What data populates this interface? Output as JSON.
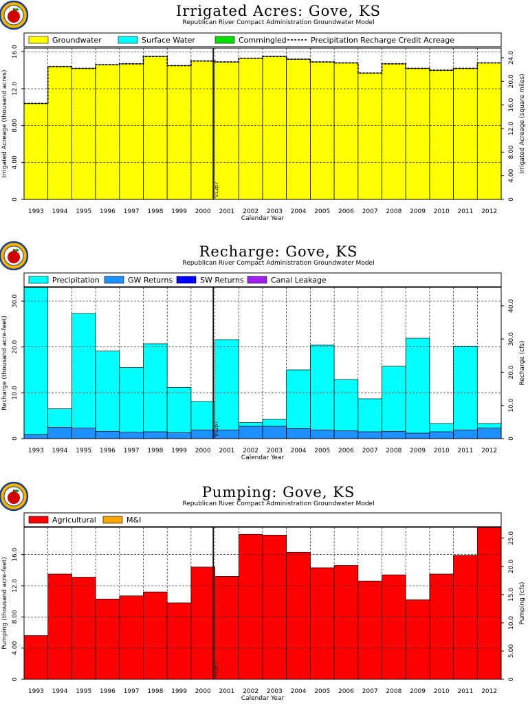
{
  "years": [
    "1993",
    "1994",
    "1995",
    "1996",
    "1997",
    "1998",
    "1999",
    "2000",
    "2001",
    "2002",
    "2003",
    "2004",
    "2005",
    "2006",
    "2007",
    "2008",
    "2009",
    "2010",
    "2011",
    "2012"
  ],
  "colors": {
    "groundwater": "#ffff00",
    "surface_water": "#00ffff",
    "commingled": "#00e000",
    "precipitation": "#00ffff",
    "gw_returns": "#1e90ff",
    "sw_returns": "#0000ff",
    "canal_leakage": "#a020f0",
    "agricultural": "#ff0000",
    "mi": "#ffa500"
  },
  "logo_icon": "apple-logo-icon",
  "chart_data": [
    {
      "type": "bar",
      "title": "Irrigated Acres: Gove, KS",
      "subtitle": "Republican River Compact Administration Groundwater Model",
      "xlabel": "Calendar Year",
      "ylabel": "Irrigated Acreage (thousand acres)",
      "y2label": "Irrigated Acreage (square miles)",
      "ylim": [
        0,
        16.4
      ],
      "yticks": [
        "0",
        "4.00",
        "8.00",
        "12.0",
        "16.0"
      ],
      "y2ticks": [
        "0",
        "4.00",
        "8.00",
        "12.0",
        "16.0",
        "20.0",
        "24.0"
      ],
      "marker_label": "V12p7",
      "legend": [
        "Groundwater",
        "Surface Water",
        "Commingled",
        "Precipitation  Recharge  Credit  Acreage"
      ],
      "series": [
        {
          "name": "Groundwater",
          "values": [
            10.4,
            14.4,
            14.2,
            14.6,
            14.7,
            15.5,
            14.5,
            15.0,
            14.9,
            15.3,
            15.5,
            15.2,
            14.9,
            14.8,
            13.7,
            14.7,
            14.2,
            14.0,
            14.2,
            14.8
          ]
        },
        {
          "name": "Surface Water",
          "values": [
            0,
            0,
            0,
            0,
            0,
            0,
            0,
            0,
            0,
            0,
            0,
            0,
            0,
            0,
            0,
            0,
            0,
            0,
            0,
            0
          ]
        },
        {
          "name": "Commingled",
          "values": [
            0,
            0,
            0,
            0,
            0,
            0,
            0,
            0,
            0,
            0,
            0,
            0,
            0,
            0,
            0,
            0,
            0,
            0,
            0,
            0
          ]
        }
      ],
      "line": {
        "name": "Precipitation  Recharge  Credit  Acreage",
        "values": [
          10.4,
          14.4,
          14.2,
          14.6,
          14.7,
          15.5,
          14.5,
          15.0,
          14.9,
          15.3,
          15.5,
          15.2,
          14.9,
          14.8,
          13.7,
          14.7,
          14.2,
          14.0,
          14.2,
          14.8
        ]
      }
    },
    {
      "type": "bar",
      "title": "Recharge: Gove, KS",
      "subtitle": "Republican River Compact Administration Groundwater Model",
      "xlabel": "Calendar Year",
      "ylabel": "Recharge (thousand acre-feet)",
      "y2label": "Recharge (cfs)",
      "ylim": [
        0,
        33
      ],
      "yticks": [
        "0",
        "10.0",
        "20.0",
        "30.0"
      ],
      "y2ticks": [
        "0",
        "10.0",
        "20.0",
        "30.0",
        "40.0"
      ],
      "marker_label": "V12p7",
      "legend": [
        "Precipitation",
        "GW Returns",
        "SW Returns",
        "Canal Leakage"
      ],
      "series": [
        {
          "name": "GW Returns",
          "values": [
            0.9,
            2.5,
            2.3,
            1.6,
            1.4,
            1.5,
            1.3,
            1.9,
            1.9,
            2.7,
            2.7,
            2.2,
            1.9,
            1.7,
            1.5,
            1.6,
            1.2,
            1.5,
            1.9,
            2.3
          ]
        },
        {
          "name": "Precipitation",
          "values": [
            32.2,
            4.0,
            25.0,
            17.5,
            14.1,
            19.2,
            9.9,
            6.2,
            19.7,
            0.8,
            1.5,
            12.8,
            18.5,
            11.2,
            7.2,
            14.2,
            20.7,
            1.8,
            18.3,
            1.0
          ]
        },
        {
          "name": "SW Returns",
          "values": [
            0,
            0,
            0,
            0,
            0,
            0,
            0,
            0,
            0,
            0,
            0,
            0,
            0,
            0,
            0,
            0,
            0,
            0,
            0,
            0
          ]
        },
        {
          "name": "Canal Leakage",
          "values": [
            0,
            0,
            0,
            0,
            0,
            0,
            0,
            0,
            0,
            0,
            0,
            0,
            0,
            0,
            0,
            0,
            0,
            0,
            0,
            0
          ]
        }
      ]
    },
    {
      "type": "bar",
      "title": "Pumping: Gove, KS",
      "subtitle": "Republican River Compact Administration Groundwater Model",
      "xlabel": "Calendar Year",
      "ylabel": "Pumping (thousand acre-feet)",
      "y2label": "Pumping (cfs)",
      "ylim": [
        0,
        19.5
      ],
      "yticks": [
        "0",
        "4.00",
        "8.00",
        "12.0",
        "16.0"
      ],
      "y2ticks": [
        "0",
        "5.00",
        "10.0",
        "15.0",
        "20.0",
        "25.0"
      ],
      "marker_label": "V12p7",
      "legend": [
        "Agricultural",
        "M&I"
      ],
      "series": [
        {
          "name": "Agricultural",
          "values": [
            5.6,
            13.5,
            13.1,
            10.3,
            10.7,
            11.2,
            9.8,
            14.4,
            13.2,
            18.6,
            18.5,
            16.3,
            14.3,
            14.6,
            12.6,
            13.4,
            10.2,
            13.5,
            15.9,
            19.5
          ]
        },
        {
          "name": "M&I",
          "values": [
            0,
            0,
            0,
            0,
            0,
            0,
            0,
            0,
            0,
            0,
            0,
            0,
            0,
            0,
            0,
            0,
            0,
            0,
            0,
            0
          ]
        }
      ]
    }
  ]
}
